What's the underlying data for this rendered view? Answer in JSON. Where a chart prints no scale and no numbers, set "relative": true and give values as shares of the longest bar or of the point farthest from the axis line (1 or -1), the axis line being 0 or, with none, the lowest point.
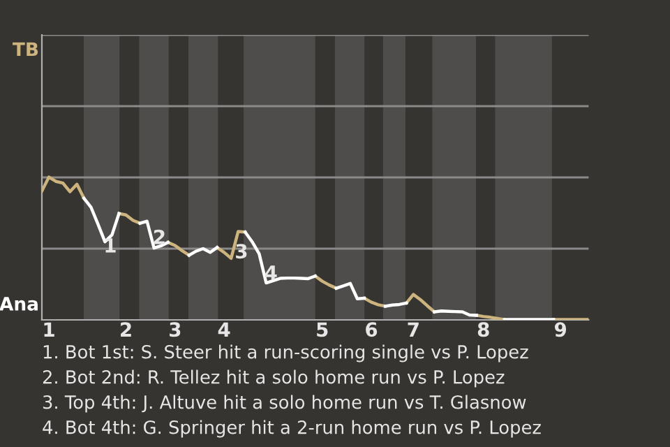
{
  "chart_data": {
    "type": "line",
    "relative": true,
    "categories": [
      null,
      "1",
      null,
      null,
      null,
      null,
      null,
      null,
      null,
      null,
      null,
      null,
      "2",
      null,
      null,
      null,
      null,
      null,
      null,
      "3",
      null,
      null,
      null,
      null,
      null,
      null,
      "4",
      null,
      null,
      null,
      null,
      null,
      null,
      null,
      null,
      null,
      null,
      null,
      null,
      null,
      "5",
      null,
      null,
      null,
      null,
      null,
      null,
      "6",
      null,
      null,
      null,
      null,
      null,
      "7",
      null,
      null,
      null,
      null,
      null,
      null,
      null,
      null,
      null,
      "8",
      null,
      null,
      null,
      null,
      null,
      null,
      null,
      null,
      null,
      null,
      "9",
      null,
      null,
      null,
      null
    ],
    "series": [
      {
        "color": "#cdb47e",
        "values": [
          0.902,
          1.0,
          0.97,
          0.958,
          0.898,
          0.95,
          0.852,
          null,
          null,
          null,
          null,
          0.745,
          0.735,
          0.697,
          0.677,
          null,
          null,
          null,
          0.543,
          0.521,
          0.485,
          0.453,
          null,
          null,
          null,
          0.507,
          0.473,
          0.431,
          0.619,
          0.615,
          null,
          null,
          null,
          null,
          null,
          null,
          null,
          null,
          null,
          0.307,
          0.271,
          0.244,
          0.222,
          null,
          null,
          null,
          0.152,
          0.124,
          0.106,
          0.096,
          null,
          null,
          0.118,
          0.178,
          0.142,
          0.098,
          0.056,
          null,
          null,
          null,
          null,
          null,
          0.032,
          0.024,
          0.018,
          0.01,
          0.002,
          null,
          null,
          null,
          null,
          null,
          null,
          0.002,
          0.002,
          0.002,
          0.002,
          0.002,
          0.002
        ]
      },
      {
        "color": "#ffffff",
        "values": [
          null,
          null,
          null,
          null,
          null,
          null,
          0.852,
          0.79,
          0.671,
          0.547,
          0.595,
          0.745,
          null,
          null,
          0.677,
          0.691,
          0.503,
          0.519,
          0.543,
          null,
          null,
          0.453,
          0.481,
          0.499,
          0.473,
          0.507,
          null,
          null,
          null,
          0.615,
          0.547,
          0.463,
          0.259,
          0.275,
          0.291,
          0.293,
          0.293,
          0.291,
          0.289,
          0.307,
          null,
          null,
          0.222,
          0.238,
          0.255,
          0.148,
          0.152,
          null,
          null,
          0.096,
          0.104,
          0.108,
          0.118,
          null,
          null,
          null,
          0.056,
          0.062,
          0.06,
          0.058,
          0.056,
          0.034,
          0.032,
          null,
          null,
          null,
          0.002,
          0.002,
          0.002,
          0.002,
          0.002,
          0.002,
          0.002,
          0.002,
          null,
          null,
          null,
          null,
          null
        ]
      }
    ],
    "ref_lines": [
      {
        "axis": "y",
        "value": 0.499,
        "label": null,
        "color": "#8a8a8a"
      },
      {
        "axis": "y",
        "value": 0.998,
        "label": null,
        "color": "#8a8a8a"
      },
      {
        "axis": "y",
        "value": 1.497,
        "label": null,
        "color": "#8a8a8a"
      },
      {
        "axis": "y",
        "value": 1.996,
        "label": null,
        "color": "#8a8a8a"
      }
    ],
    "annotations": [
      "TB",
      "Ana",
      "1",
      "2",
      "3",
      "4",
      "1. Bot 1st: S. Steer hit a run-scoring single vs P. Lopez",
      "2. Bot 2nd: R. Tellez hit a solo home run vs P. Lopez",
      "3. Top 4th: J. Altuve hit a solo home run vs T. Glasnow",
      "4. Bot 4th: G. Springer hit a 2-run home run vs P. Lopez"
    ],
    "line_style": "solid",
    "marker": "none"
  }
}
